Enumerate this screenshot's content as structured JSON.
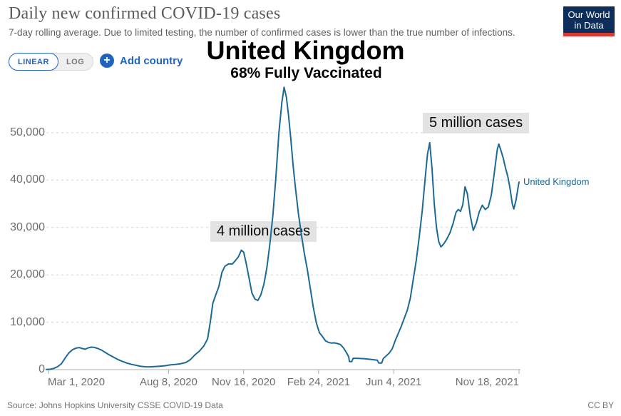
{
  "header": {
    "title": "Daily new confirmed COVID-19 cases",
    "subtitle": "7-day rolling average. Due to limited testing, the number of confirmed cases is lower than the true number of infections.",
    "logo": {
      "line1": "Our World",
      "line2": "in Data"
    }
  },
  "controls": {
    "linear_label": "LINEAR",
    "log_label": "LOG",
    "plus_icon": "+",
    "add_country_label": "Add country"
  },
  "overlay": {
    "country": "United Kingdom",
    "vaccinated": "68% Fully Vaccinated"
  },
  "annotations": [
    {
      "text": "4 million cases"
    },
    {
      "text": "5 million cases"
    }
  ],
  "series_end_label": "United Kingdom",
  "footer": {
    "source": "Source: Johns Hopkins University CSSE COVID-19 Data",
    "license": "CC BY"
  },
  "colors": {
    "line": "#1d6996",
    "ui_blue": "#2164c0",
    "logo_bg": "#0d2e5a",
    "logo_bar": "#dc3a30",
    "annotation_bg": "#e3e3e3"
  },
  "chart_data": {
    "type": "line",
    "title": "Daily new confirmed COVID-19 cases",
    "ylabel": "",
    "xlabel": "",
    "ylim": [
      0,
      60000
    ],
    "grid": "horizontal-dashed",
    "legend_position": "end-of-line-label",
    "yticks": [
      0,
      10000,
      20000,
      30000,
      40000,
      50000
    ],
    "ytick_labels": [
      "0",
      "10,000",
      "20,000",
      "30,000",
      "40,000",
      "50,000"
    ],
    "xlim": [
      "2020-03-01",
      "2021-11-18"
    ],
    "xticks": [
      {
        "date": "2020-03-01",
        "label": "Mar 1, 2020",
        "align": "left"
      },
      {
        "date": "2020-08-08",
        "label": "Aug 8, 2020",
        "align": "center"
      },
      {
        "date": "2020-11-16",
        "label": "Nov 16, 2020",
        "align": "center"
      },
      {
        "date": "2021-02-24",
        "label": "Feb 24, 2021",
        "align": "center"
      },
      {
        "date": "2021-06-04",
        "label": "Jun 4, 2021",
        "align": "center"
      },
      {
        "date": "2021-11-18",
        "label": "Nov 18, 2021",
        "align": "right"
      }
    ],
    "series": [
      {
        "name": "United Kingdom",
        "points": [
          [
            "2020-02-27",
            30
          ],
          [
            "2020-03-03",
            80
          ],
          [
            "2020-03-08",
            250
          ],
          [
            "2020-03-13",
            600
          ],
          [
            "2020-03-18",
            1200
          ],
          [
            "2020-03-23",
            2400
          ],
          [
            "2020-03-28",
            3500
          ],
          [
            "2020-04-02",
            4200
          ],
          [
            "2020-04-07",
            4550
          ],
          [
            "2020-04-11",
            4650
          ],
          [
            "2020-04-15",
            4450
          ],
          [
            "2020-04-19",
            4300
          ],
          [
            "2020-04-23",
            4600
          ],
          [
            "2020-04-27",
            4750
          ],
          [
            "2020-05-01",
            4700
          ],
          [
            "2020-05-06",
            4450
          ],
          [
            "2020-05-11",
            4100
          ],
          [
            "2020-05-16",
            3600
          ],
          [
            "2020-05-21",
            3100
          ],
          [
            "2020-05-27",
            2600
          ],
          [
            "2020-06-02",
            2100
          ],
          [
            "2020-06-08",
            1700
          ],
          [
            "2020-06-14",
            1350
          ],
          [
            "2020-06-20",
            1100
          ],
          [
            "2020-06-26",
            900
          ],
          [
            "2020-07-02",
            700
          ],
          [
            "2020-07-08",
            600
          ],
          [
            "2020-07-14",
            580
          ],
          [
            "2020-07-20",
            650
          ],
          [
            "2020-07-27",
            720
          ],
          [
            "2020-08-03",
            820
          ],
          [
            "2020-08-10",
            1000
          ],
          [
            "2020-08-17",
            1100
          ],
          [
            "2020-08-24",
            1250
          ],
          [
            "2020-08-31",
            1500
          ],
          [
            "2020-09-06",
            2100
          ],
          [
            "2020-09-12",
            3100
          ],
          [
            "2020-09-18",
            3900
          ],
          [
            "2020-09-24",
            5000
          ],
          [
            "2020-09-29",
            6500
          ],
          [
            "2020-10-03",
            10500
          ],
          [
            "2020-10-06",
            14000
          ],
          [
            "2020-10-10",
            15800
          ],
          [
            "2020-10-14",
            17500
          ],
          [
            "2020-10-18",
            20500
          ],
          [
            "2020-10-22",
            21800
          ],
          [
            "2020-10-27",
            22300
          ],
          [
            "2020-11-01",
            22300
          ],
          [
            "2020-11-05",
            23000
          ],
          [
            "2020-11-09",
            23800
          ],
          [
            "2020-11-13",
            25200
          ],
          [
            "2020-11-16",
            24800
          ],
          [
            "2020-11-19",
            22800
          ],
          [
            "2020-11-23",
            19500
          ],
          [
            "2020-11-27",
            16200
          ],
          [
            "2020-12-01",
            14900
          ],
          [
            "2020-12-05",
            14600
          ],
          [
            "2020-12-09",
            15800
          ],
          [
            "2020-12-13",
            18000
          ],
          [
            "2020-12-17",
            21500
          ],
          [
            "2020-12-21",
            26500
          ],
          [
            "2020-12-25",
            32500
          ],
          [
            "2020-12-29",
            40500
          ],
          [
            "2021-01-02",
            50000
          ],
          [
            "2021-01-06",
            56500
          ],
          [
            "2021-01-09",
            59600
          ],
          [
            "2021-01-12",
            57500
          ],
          [
            "2021-01-15",
            53500
          ],
          [
            "2021-01-18",
            48500
          ],
          [
            "2021-01-21",
            43000
          ],
          [
            "2021-01-24",
            38500
          ],
          [
            "2021-01-28",
            33000
          ],
          [
            "2021-02-01",
            28500
          ],
          [
            "2021-02-05",
            24500
          ],
          [
            "2021-02-09",
            21000
          ],
          [
            "2021-02-13",
            17000
          ],
          [
            "2021-02-17",
            13000
          ],
          [
            "2021-02-21",
            9800
          ],
          [
            "2021-02-25",
            7800
          ],
          [
            "2021-03-01",
            7000
          ],
          [
            "2021-03-05",
            6100
          ],
          [
            "2021-03-09",
            5750
          ],
          [
            "2021-03-13",
            5600
          ],
          [
            "2021-03-17",
            5650
          ],
          [
            "2021-03-21",
            5500
          ],
          [
            "2021-03-25",
            5300
          ],
          [
            "2021-03-29",
            4600
          ],
          [
            "2021-04-02",
            3600
          ],
          [
            "2021-04-05",
            2700
          ],
          [
            "2021-04-06",
            1700
          ],
          [
            "2021-04-09",
            1700
          ],
          [
            "2021-04-11",
            2400
          ],
          [
            "2021-04-15",
            2400
          ],
          [
            "2021-04-20",
            2350
          ],
          [
            "2021-04-26",
            2300
          ],
          [
            "2021-05-02",
            2200
          ],
          [
            "2021-05-08",
            2100
          ],
          [
            "2021-05-13",
            2000
          ],
          [
            "2021-05-15",
            1400
          ],
          [
            "2021-05-19",
            1400
          ],
          [
            "2021-05-21",
            2300
          ],
          [
            "2021-05-25",
            2900
          ],
          [
            "2021-05-29",
            3500
          ],
          [
            "2021-06-02",
            4400
          ],
          [
            "2021-06-06",
            6100
          ],
          [
            "2021-06-10",
            7600
          ],
          [
            "2021-06-14",
            9100
          ],
          [
            "2021-06-18",
            10800
          ],
          [
            "2021-06-22",
            12500
          ],
          [
            "2021-06-26",
            15000
          ],
          [
            "2021-06-30",
            19000
          ],
          [
            "2021-07-04",
            23000
          ],
          [
            "2021-07-08",
            28000
          ],
          [
            "2021-07-12",
            33500
          ],
          [
            "2021-07-16",
            40500
          ],
          [
            "2021-07-19",
            45500
          ],
          [
            "2021-07-22",
            47900
          ],
          [
            "2021-07-25",
            42500
          ],
          [
            "2021-07-28",
            35000
          ],
          [
            "2021-07-31",
            30000
          ],
          [
            "2021-08-03",
            27000
          ],
          [
            "2021-08-06",
            25900
          ],
          [
            "2021-08-10",
            26600
          ],
          [
            "2021-08-14",
            27600
          ],
          [
            "2021-08-18",
            28900
          ],
          [
            "2021-08-22",
            30800
          ],
          [
            "2021-08-26",
            33200
          ],
          [
            "2021-08-29",
            33800
          ],
          [
            "2021-09-01",
            33400
          ],
          [
            "2021-09-04",
            34800
          ],
          [
            "2021-09-07",
            38600
          ],
          [
            "2021-09-10",
            37200
          ],
          [
            "2021-09-14",
            32500
          ],
          [
            "2021-09-18",
            29400
          ],
          [
            "2021-09-22",
            30900
          ],
          [
            "2021-09-26",
            33300
          ],
          [
            "2021-09-30",
            34700
          ],
          [
            "2021-10-04",
            33800
          ],
          [
            "2021-10-08",
            34300
          ],
          [
            "2021-10-12",
            36800
          ],
          [
            "2021-10-16",
            41500
          ],
          [
            "2021-10-20",
            46500
          ],
          [
            "2021-10-22",
            47600
          ],
          [
            "2021-10-25",
            46200
          ],
          [
            "2021-10-28",
            44600
          ],
          [
            "2021-10-31",
            42500
          ],
          [
            "2021-11-03",
            40800
          ],
          [
            "2021-11-06",
            38200
          ],
          [
            "2021-11-09",
            35000
          ],
          [
            "2021-11-11",
            33900
          ],
          [
            "2021-11-14",
            35800
          ],
          [
            "2021-11-16",
            37800
          ],
          [
            "2021-11-18",
            39600
          ]
        ]
      }
    ]
  }
}
